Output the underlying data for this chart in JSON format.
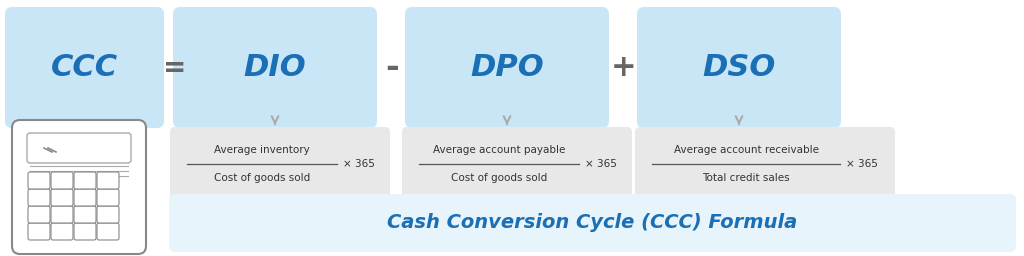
{
  "figsize": [
    10.24,
    2.56
  ],
  "dpi": 100,
  "bg_white": "#ffffff",
  "bg_outer": "#f2f2f2",
  "border_color": "#cccccc",
  "blue_box_fill": "#c8e6f5",
  "formula_box_fill": "#e8f4fb",
  "formula_gray_fill": "#e8e8e8",
  "text_blue": "#1a6fb5",
  "text_dark": "#333333",
  "arrow_color": "#aaaaaa",
  "title_text": "Cash Conversion Cycle (CCC) Formula",
  "ccc_label": "CCC",
  "equals": "=",
  "minus": "-",
  "plus": "+",
  "dio_label": "DIO",
  "dpo_label": "DPO",
  "dso_label": "DSO",
  "dio_num": "Average inventory",
  "dio_den": "Cost of goods sold",
  "dpo_num": "Average account payable",
  "dpo_den": "Cost of goods sold",
  "dso_num": "Average account receivable",
  "dso_den": "Total credit sales",
  "times365": "× 365"
}
